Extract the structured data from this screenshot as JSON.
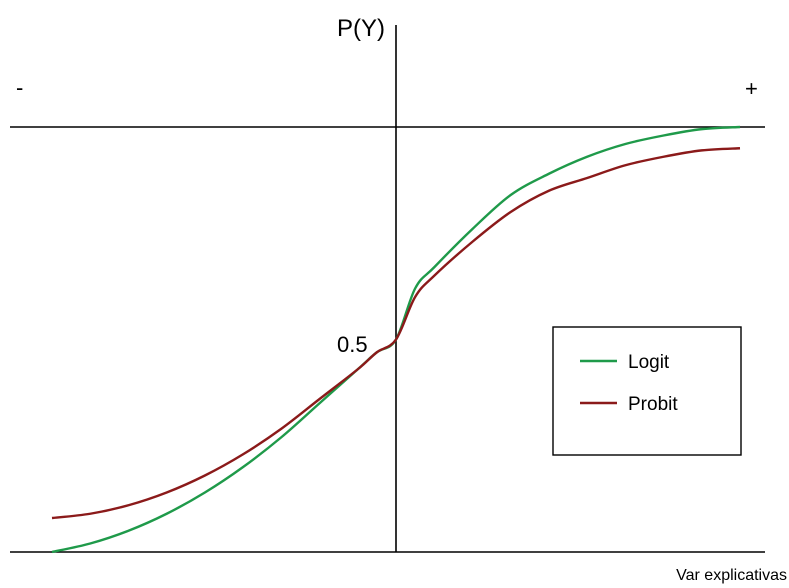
{
  "chart_data": {
    "type": "line",
    "title": "",
    "ylabel": "P(Y)",
    "xlabel": "Var explicativas",
    "x_negative_sign": "-",
    "x_positive_sign": "+",
    "xlim": [
      -10,
      10
    ],
    "ylim": [
      0,
      1
    ],
    "midpoint_label": "0.5",
    "midpoint_value": 0.5,
    "grid": false,
    "legend_position": "center-right",
    "series": [
      {
        "name": "Logit",
        "color": "#1f9a4a",
        "x": [
          -9,
          -8,
          -7,
          -6,
          -5,
          -4,
          -3,
          -2,
          -1,
          -0.5,
          0,
          0.5,
          1,
          2,
          3,
          4,
          5,
          6,
          7,
          8,
          9
        ],
        "y": [
          0.0,
          0.02,
          0.05,
          0.09,
          0.14,
          0.2,
          0.27,
          0.35,
          0.43,
          0.47,
          0.5,
          0.62,
          0.67,
          0.76,
          0.84,
          0.89,
          0.93,
          0.96,
          0.98,
          0.995,
          1.0
        ]
      },
      {
        "name": "Probit",
        "color": "#8b1a1a",
        "x": [
          -9,
          -8,
          -7,
          -6,
          -5,
          -4,
          -3,
          -2,
          -1,
          -0.5,
          0,
          0.5,
          1,
          2,
          3,
          4,
          5,
          6,
          7,
          8,
          9
        ],
        "y": [
          0.08,
          0.09,
          0.11,
          0.14,
          0.18,
          0.23,
          0.29,
          0.36,
          0.43,
          0.47,
          0.5,
          0.6,
          0.65,
          0.73,
          0.8,
          0.85,
          0.88,
          0.91,
          0.93,
          0.945,
          0.95
        ]
      }
    ]
  }
}
